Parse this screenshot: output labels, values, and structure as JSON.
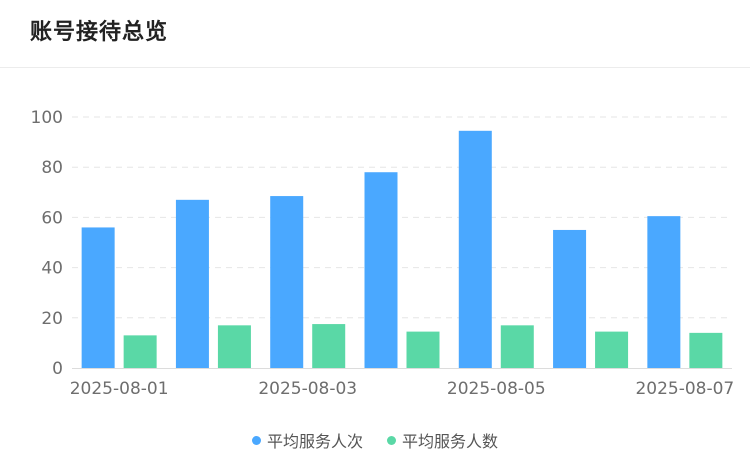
{
  "title": "账号接待总览",
  "chart_data": {
    "type": "bar",
    "categories": [
      "2025-08-01",
      "2025-08-02",
      "2025-08-03",
      "2025-08-04",
      "2025-08-05",
      "2025-08-06",
      "2025-08-07"
    ],
    "x_tick_labels_shown": [
      "2025-08-01",
      "2025-08-03",
      "2025-08-05",
      "2025-08-07"
    ],
    "series": [
      {
        "name": "平均服务人次",
        "color": "#4aa8ff",
        "values": [
          56,
          67,
          68.5,
          78,
          94.5,
          55,
          60.5
        ]
      },
      {
        "name": "平均服务人数",
        "color": "#5ad8a6",
        "values": [
          13,
          17,
          17.5,
          14.5,
          17,
          14.5,
          14
        ]
      }
    ],
    "ylim": [
      0,
      100
    ],
    "yticks": [
      0,
      20,
      40,
      60,
      80,
      100
    ],
    "grid": true,
    "legend_position": "bottom-center"
  }
}
